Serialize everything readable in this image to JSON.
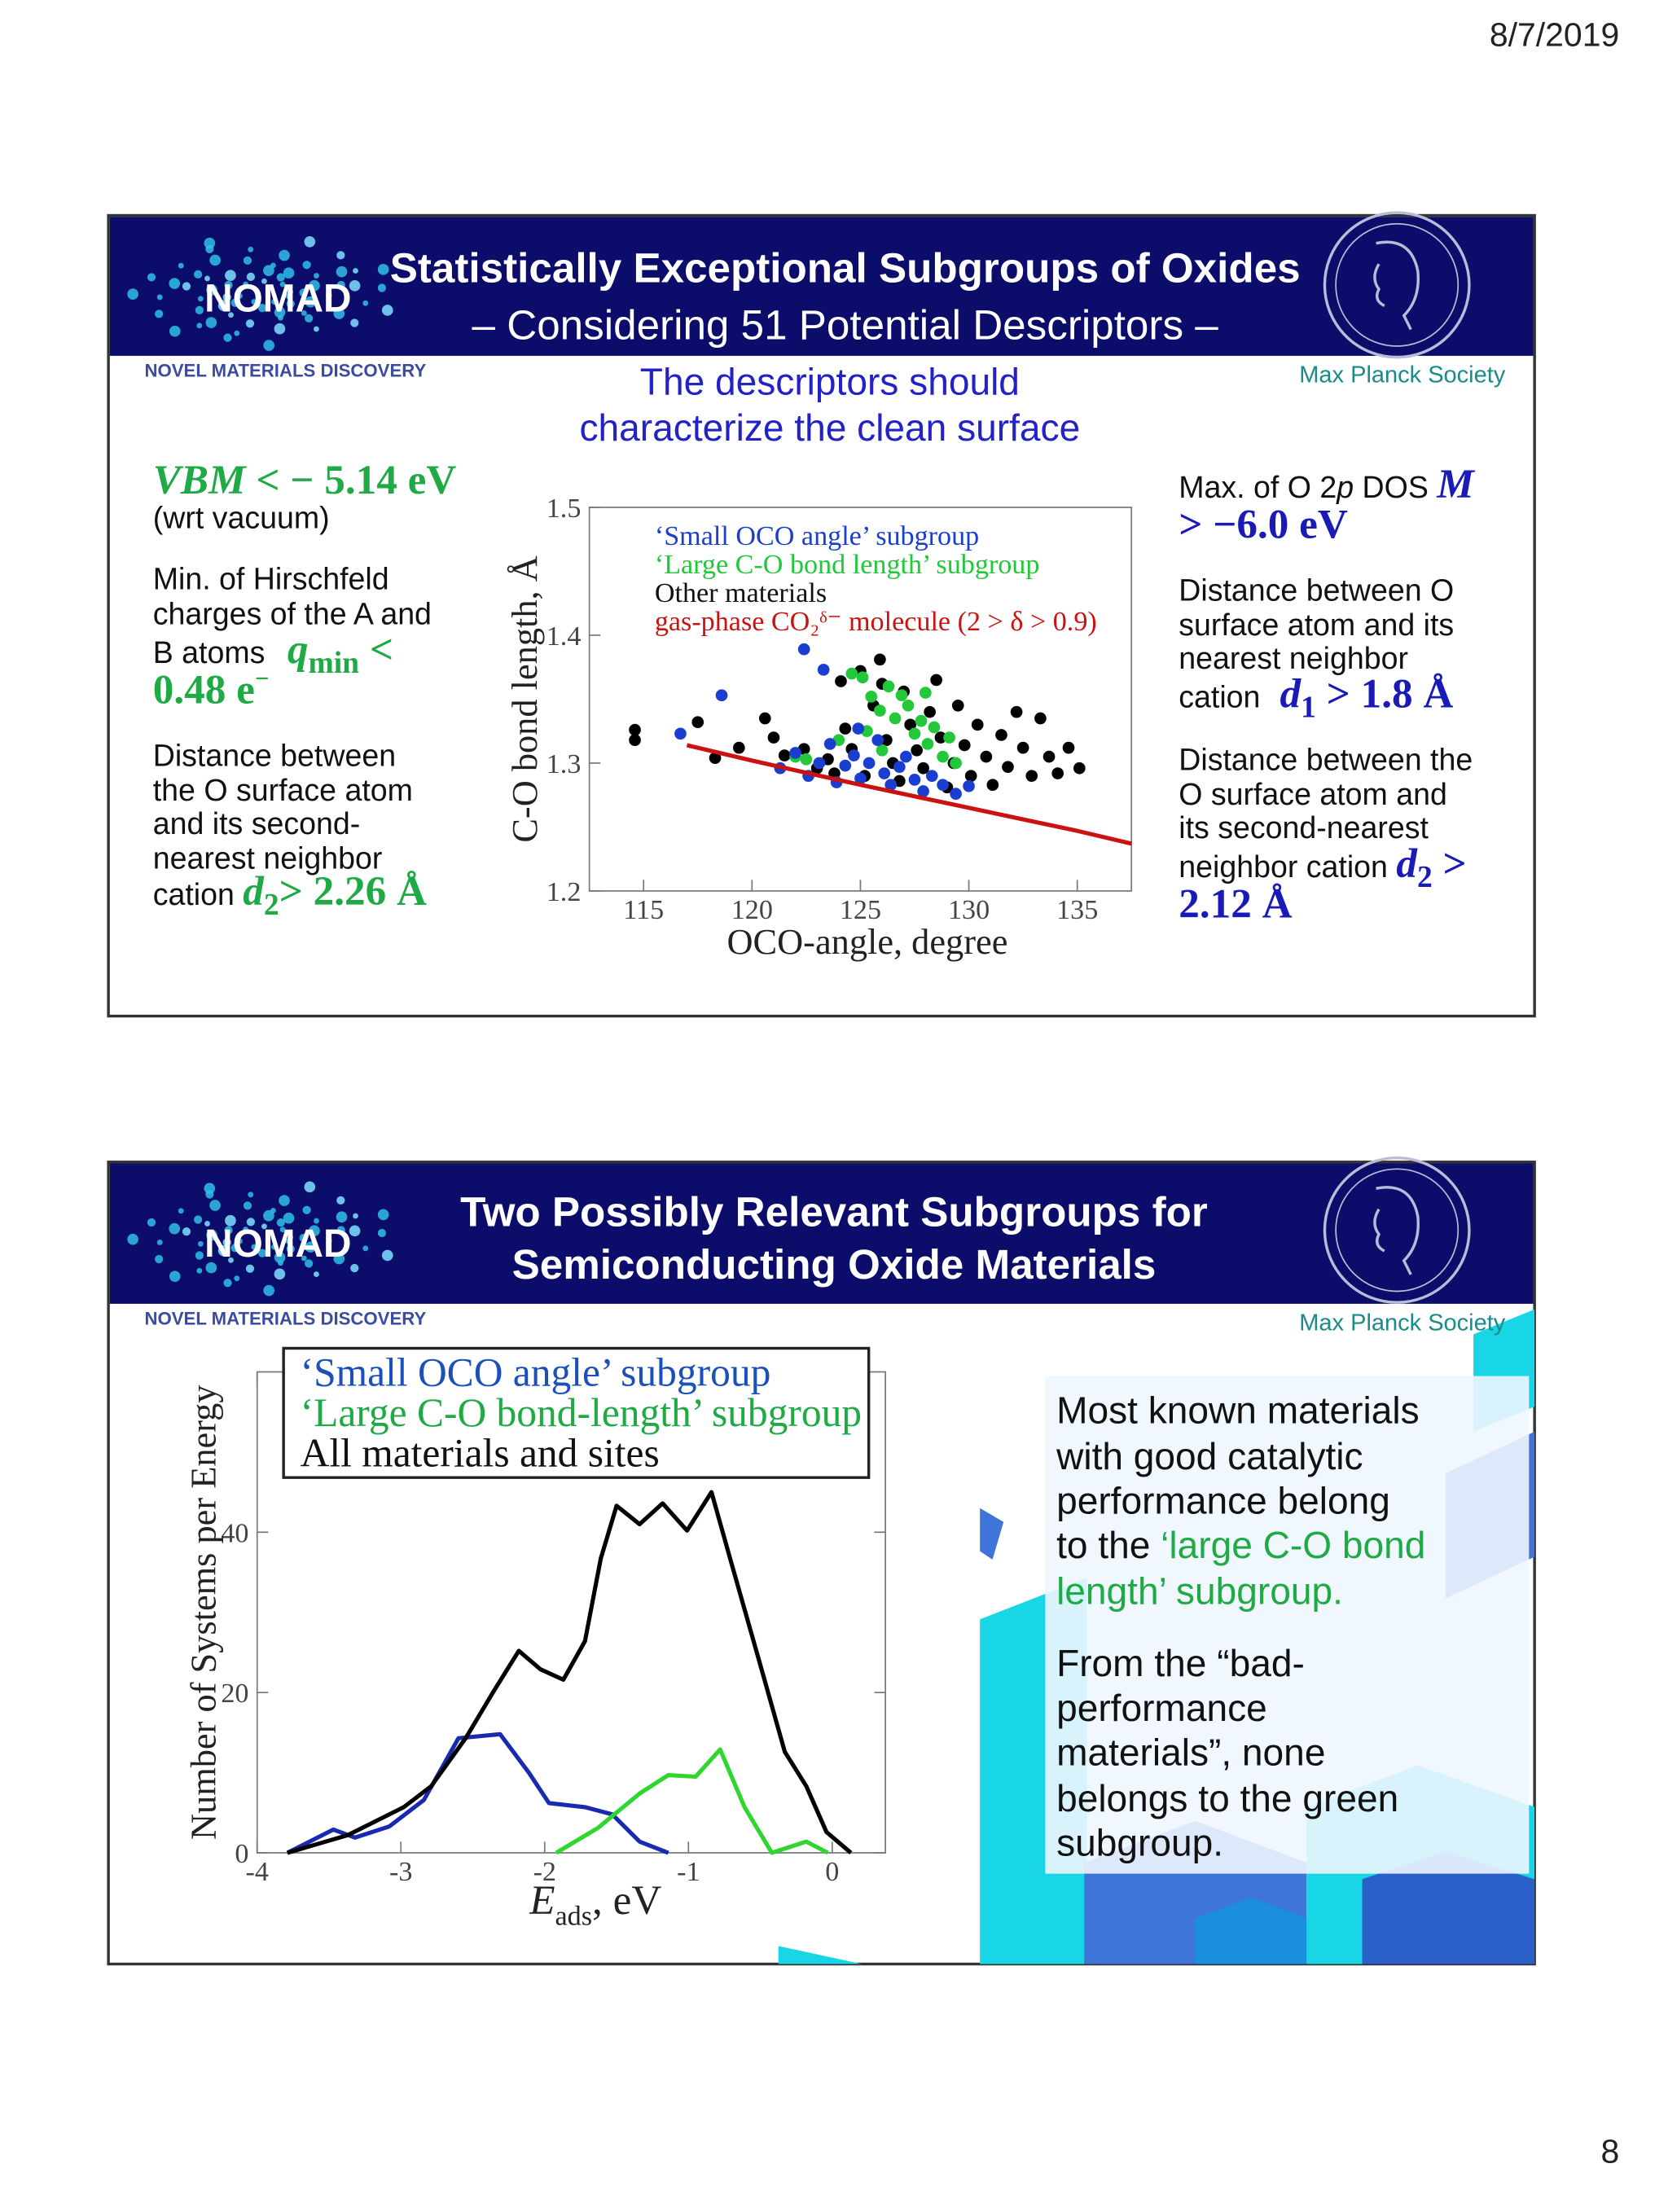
{
  "date": "8/7/2019",
  "page_number": "8",
  "slides": [
    {
      "logo": "NOMAD",
      "logo_caption": "NOVEL MATERIALS DISCOVERY",
      "institution": "Max Planck Society",
      "title": "Statistically Exceptional Subgroups of Oxides",
      "subtitle": "– Considering 51 Potential Descriptors –",
      "intro": [
        "The descriptors should",
        "characterize the clean surface"
      ],
      "left": [
        "VBM",
        " < − 5.14 eV",
        "(wrt vacuum)",
        "Min. of Hirschfeld",
        "charges of the A and",
        "B atoms ",
        "q",
        "min",
        " <",
        "0.48 e",
        "−",
        "Distance between",
        "the O surface atom",
        "and its second-",
        "nearest neighbor",
        "cation ",
        "d",
        "2",
        "> 2.26 Å"
      ],
      "right": [
        "Max. of O 2",
        "p",
        " DOS ",
        "M",
        "> −6.0 eV",
        "Distance between O",
        "surface atom and its",
        "nearest neighbor",
        "cation ",
        "d",
        "1",
        " > 1.8 Å",
        "Distance between the",
        "O surface atom and",
        "its second-nearest",
        "neighbor cation ",
        "d",
        "2",
        " >",
        "2.12 Å"
      ]
    },
    {
      "logo": "NOMAD",
      "logo_caption": "NOVEL MATERIALS DISCOVERY",
      "institution": "Max Planck Society",
      "title": [
        "Two Possibly Relevant Subgroups for",
        "Semiconducting Oxide Materials"
      ],
      "body": [
        "Most known materials",
        "with good catalytic",
        "performance belong",
        "to the ",
        "‘large C-O bond",
        "length’ subgroup.",
        "From the “bad-",
        "performance",
        "materials”, none",
        "belongs to the green",
        "subgroup."
      ]
    }
  ],
  "chart_data": [
    {
      "type": "scatter",
      "x_label": "OCO-angle, degree",
      "y_label": "C-O bond length, Å",
      "xlim": [
        112.5,
        137.5
      ],
      "ylim": [
        1.2,
        1.5
      ],
      "xticks": [
        115,
        120,
        125,
        130,
        135
      ],
      "yticks": [
        1.2,
        1.3,
        1.4,
        1.5
      ],
      "series": [
        {
          "name": "‘Small OCO angle’ subgroup",
          "color": "#1a3fd0",
          "x": [
            122.4,
            123.3,
            118.6,
            116.7,
            121.3,
            122.0,
            122.6,
            123.1,
            123.6,
            123.9,
            124.3,
            124.7,
            125.0,
            125.4,
            125.8,
            126.1,
            126.4,
            126.8,
            127.1,
            127.5,
            127.9,
            128.3,
            128.8,
            129.4,
            130.0,
            124.9
          ],
          "values": [
            1.389,
            1.373,
            1.353,
            1.323,
            1.296,
            1.308,
            1.29,
            1.3,
            1.315,
            1.285,
            1.298,
            1.306,
            1.288,
            1.3,
            1.318,
            1.292,
            1.283,
            1.297,
            1.305,
            1.287,
            1.278,
            1.29,
            1.283,
            1.276,
            1.282,
            1.327
          ]
        },
        {
          "name": "‘Large C-O bond length’ subgroup",
          "color": "#22c83a",
          "x": [
            122.0,
            122.5,
            124.6,
            125.1,
            125.5,
            125.9,
            126.3,
            126.6,
            126.9,
            127.2,
            127.5,
            127.8,
            128.1,
            128.4,
            128.8,
            129.1,
            129.4,
            125.3,
            126.0,
            124.0,
            128.0
          ],
          "values": [
            1.305,
            1.303,
            1.37,
            1.367,
            1.352,
            1.341,
            1.36,
            1.335,
            1.353,
            1.345,
            1.323,
            1.333,
            1.315,
            1.328,
            1.305,
            1.32,
            1.3,
            1.325,
            1.31,
            1.318,
            1.355
          ]
        },
        {
          "name": "Other materials",
          "color": "#000000",
          "x": [
            114.6,
            114.6,
            117.5,
            118.3,
            119.4,
            120.6,
            121.0,
            121.5,
            122.4,
            123.0,
            123.5,
            124.1,
            124.3,
            124.6,
            125.0,
            125.2,
            125.6,
            125.9,
            126.2,
            126.5,
            126.8,
            127.0,
            127.3,
            127.6,
            127.9,
            128.2,
            128.5,
            128.7,
            129.0,
            129.3,
            129.5,
            129.8,
            130.1,
            130.4,
            130.8,
            131.1,
            131.5,
            131.8,
            132.2,
            132.5,
            132.9,
            133.3,
            133.7,
            134.1,
            134.6,
            135.1,
            126.0,
            123.8
          ],
          "values": [
            1.326,
            1.318,
            1.332,
            1.304,
            1.312,
            1.335,
            1.32,
            1.306,
            1.311,
            1.296,
            1.303,
            1.364,
            1.327,
            1.311,
            1.372,
            1.29,
            1.345,
            1.381,
            1.318,
            1.3,
            1.286,
            1.356,
            1.33,
            1.31,
            1.296,
            1.34,
            1.365,
            1.32,
            1.281,
            1.3,
            1.345,
            1.314,
            1.29,
            1.33,
            1.305,
            1.283,
            1.322,
            1.297,
            1.34,
            1.312,
            1.29,
            1.335,
            1.305,
            1.292,
            1.312,
            1.296,
            1.362,
            1.292
          ]
        },
        {
          "name": "gas-phase CO₂ᵟ⁻ molecule (2 > δ > 0.9)",
          "color": "#cc1111",
          "type": "line",
          "x": [
            117,
            120,
            125,
            130,
            135,
            137.5
          ],
          "values": [
            1.314,
            1.302,
            1.283,
            1.265,
            1.247,
            1.237
          ]
        }
      ]
    },
    {
      "type": "line",
      "x_label": [
        "E",
        "ads",
        ", eV"
      ],
      "y_label": "Number of Systems per Energy",
      "xlim": [
        -4,
        0.37
      ],
      "ylim": [
        0,
        60
      ],
      "xticks": [
        -4,
        -3,
        -2,
        -1,
        0
      ],
      "yticks": [
        0,
        20,
        40
      ],
      "series": [
        {
          "name": "‘Small OCO angle’ subgroup",
          "color": "#1a2ab0",
          "x": [
            -3.79,
            -3.47,
            -3.32,
            -3.08,
            -2.84,
            -2.6,
            -2.31,
            -2.11,
            -1.97,
            -1.72,
            -1.53,
            -1.34,
            -1.14
          ],
          "values": [
            0,
            2.9,
            1.9,
            3.3,
            6.6,
            14.3,
            14.8,
            10.0,
            6.2,
            5.7,
            4.8,
            1.4,
            0
          ]
        },
        {
          "name": "‘Large C-O bond-length’ subgroup",
          "color": "#2ed62e",
          "x": [
            -1.92,
            -1.63,
            -1.34,
            -1.14,
            -0.95,
            -0.78,
            -0.61,
            -0.42,
            -0.18,
            -0.03
          ],
          "values": [
            0,
            3.1,
            7.4,
            9.7,
            9.5,
            12.9,
            5.7,
            0,
            1.4,
            0
          ]
        },
        {
          "name": "All materials and sites",
          "color": "#000000",
          "x": [
            -3.79,
            -3.37,
            -2.98,
            -2.79,
            -2.55,
            -2.35,
            -2.18,
            -2.03,
            -1.87,
            -1.72,
            -1.61,
            -1.5,
            -1.34,
            -1.18,
            -1.01,
            -0.84,
            -0.71,
            -0.52,
            -0.33,
            -0.18,
            -0.04,
            0.13
          ],
          "values": [
            0,
            2.2,
            5.7,
            8.3,
            14.3,
            20.3,
            25.2,
            22.9,
            21.6,
            26.4,
            36.7,
            43.3,
            41.0,
            43.6,
            40.2,
            45.0,
            36.7,
            24.7,
            12.6,
            8.3,
            2.6,
            0
          ]
        }
      ]
    }
  ]
}
